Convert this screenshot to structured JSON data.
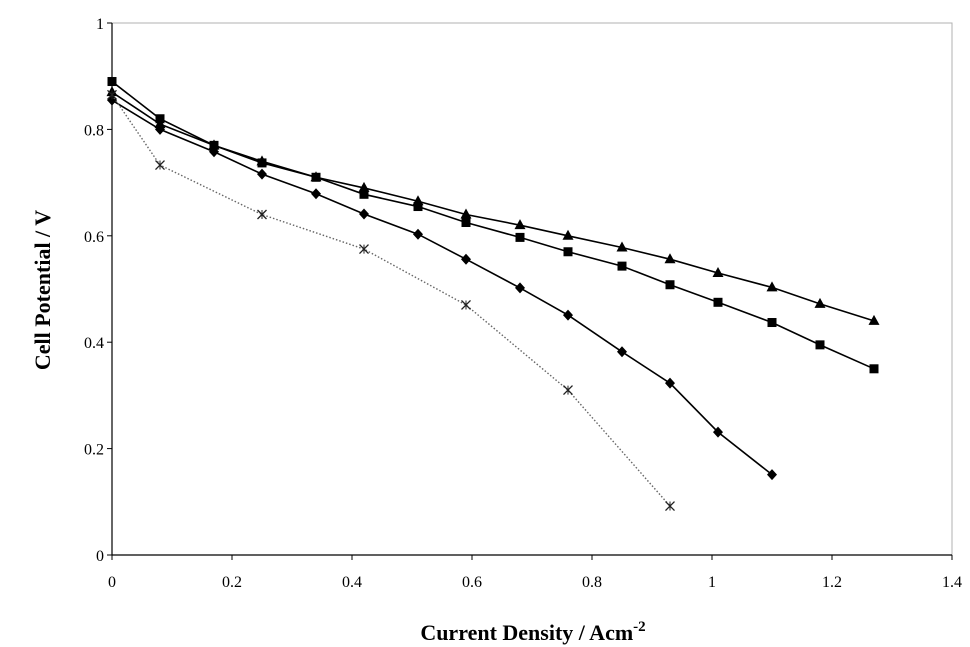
{
  "chart_data": {
    "type": "line",
    "title": "",
    "xlabel": "Current Density / Acm",
    "xlabel_superscript": "-2",
    "ylabel": "Cell Potential / V",
    "xlim": [
      0,
      1.4
    ],
    "ylim": [
      0,
      1
    ],
    "x_ticks": [
      "0",
      "0.2",
      "0.4",
      "0.6",
      "0.8",
      "1",
      "1.2",
      "1.4"
    ],
    "y_ticks": [
      "0",
      "0.2",
      "0.4",
      "0.6",
      "0.8",
      "1"
    ],
    "grid": false,
    "legend": "none",
    "series": [
      {
        "marker": "triangle",
        "color": "#000000",
        "line_style": "solid",
        "points": [
          [
            0,
            0.87
          ],
          [
            0.08,
            0.81
          ],
          [
            0.17,
            0.77
          ],
          [
            0.25,
            0.74
          ],
          [
            0.34,
            0.71
          ],
          [
            0.42,
            0.69
          ],
          [
            0.51,
            0.665
          ],
          [
            0.59,
            0.64
          ],
          [
            0.68,
            0.62
          ],
          [
            0.76,
            0.6
          ],
          [
            0.85,
            0.578
          ],
          [
            0.93,
            0.556
          ],
          [
            1.01,
            0.53
          ],
          [
            1.1,
            0.503
          ],
          [
            1.18,
            0.472
          ],
          [
            1.27,
            0.44
          ]
        ]
      },
      {
        "marker": "square",
        "color": "#000000",
        "line_style": "solid",
        "points": [
          [
            0,
            0.89
          ],
          [
            0.08,
            0.82
          ],
          [
            0.17,
            0.77
          ],
          [
            0.25,
            0.737
          ],
          [
            0.34,
            0.71
          ],
          [
            0.42,
            0.678
          ],
          [
            0.51,
            0.655
          ],
          [
            0.59,
            0.625
          ],
          [
            0.68,
            0.597
          ],
          [
            0.76,
            0.57
          ],
          [
            0.85,
            0.543
          ],
          [
            0.93,
            0.508
          ],
          [
            1.01,
            0.475
          ],
          [
            1.1,
            0.437
          ],
          [
            1.18,
            0.395
          ],
          [
            1.27,
            0.35
          ]
        ]
      },
      {
        "marker": "diamond",
        "color": "#000000",
        "line_style": "solid",
        "points": [
          [
            0,
            0.855
          ],
          [
            0.08,
            0.8
          ],
          [
            0.17,
            0.758
          ],
          [
            0.25,
            0.716
          ],
          [
            0.34,
            0.679
          ],
          [
            0.42,
            0.641
          ],
          [
            0.51,
            0.603
          ],
          [
            0.59,
            0.556
          ],
          [
            0.68,
            0.502
          ],
          [
            0.76,
            0.451
          ],
          [
            0.85,
            0.382
          ],
          [
            0.93,
            0.323
          ],
          [
            1.01,
            0.231
          ],
          [
            1.1,
            0.151
          ]
        ]
      },
      {
        "marker": "cross",
        "color": "#666666",
        "line_style": "dotted",
        "points": [
          [
            0,
            0.865
          ],
          [
            0.08,
            0.733
          ],
          [
            0.25,
            0.64
          ],
          [
            0.42,
            0.575
          ],
          [
            0.59,
            0.47
          ],
          [
            0.76,
            0.31
          ],
          [
            0.93,
            0.092
          ]
        ]
      }
    ]
  }
}
